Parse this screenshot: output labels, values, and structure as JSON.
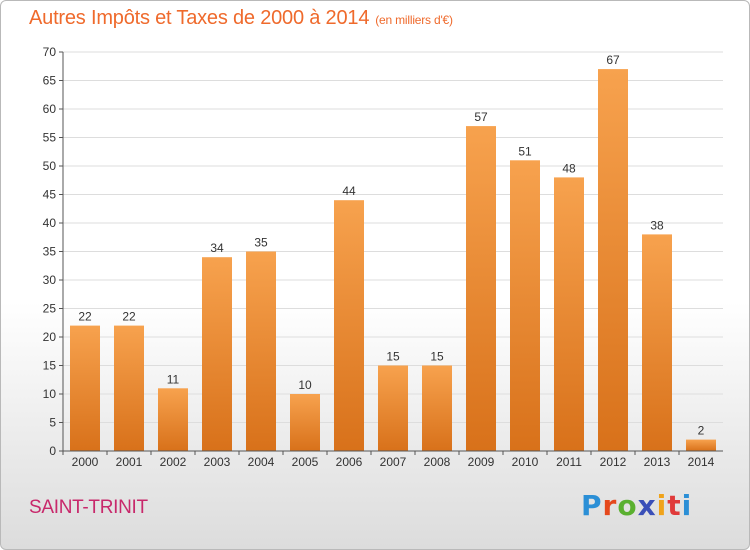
{
  "title": "Autres Impôts et Taxes de 2000 à 2014",
  "title_unit": "(en milliers d'€)",
  "commune": "SAINT-TRINIT",
  "logo": "Proxiti",
  "colors": {
    "bar_top": "#f7a24e",
    "bar_bottom": "#d8711a",
    "title": "#ef6a2c",
    "commune": "#c8286b"
  },
  "chart_data": {
    "type": "bar",
    "title": "Autres Impôts et Taxes de 2000 à 2014",
    "categories": [
      "2000",
      "2001",
      "2002",
      "2003",
      "2004",
      "2005",
      "2006",
      "2007",
      "2008",
      "2009",
      "2010",
      "2011",
      "2012",
      "2013",
      "2014"
    ],
    "values": [
      22,
      22,
      11,
      34,
      35,
      10,
      44,
      15,
      15,
      57,
      51,
      48,
      67,
      38,
      2
    ],
    "ylim": [
      0,
      70
    ],
    "yticks": [
      0,
      5,
      10,
      15,
      20,
      25,
      30,
      35,
      40,
      45,
      50,
      55,
      60,
      65,
      70
    ],
    "grid": true,
    "legend": "none"
  }
}
